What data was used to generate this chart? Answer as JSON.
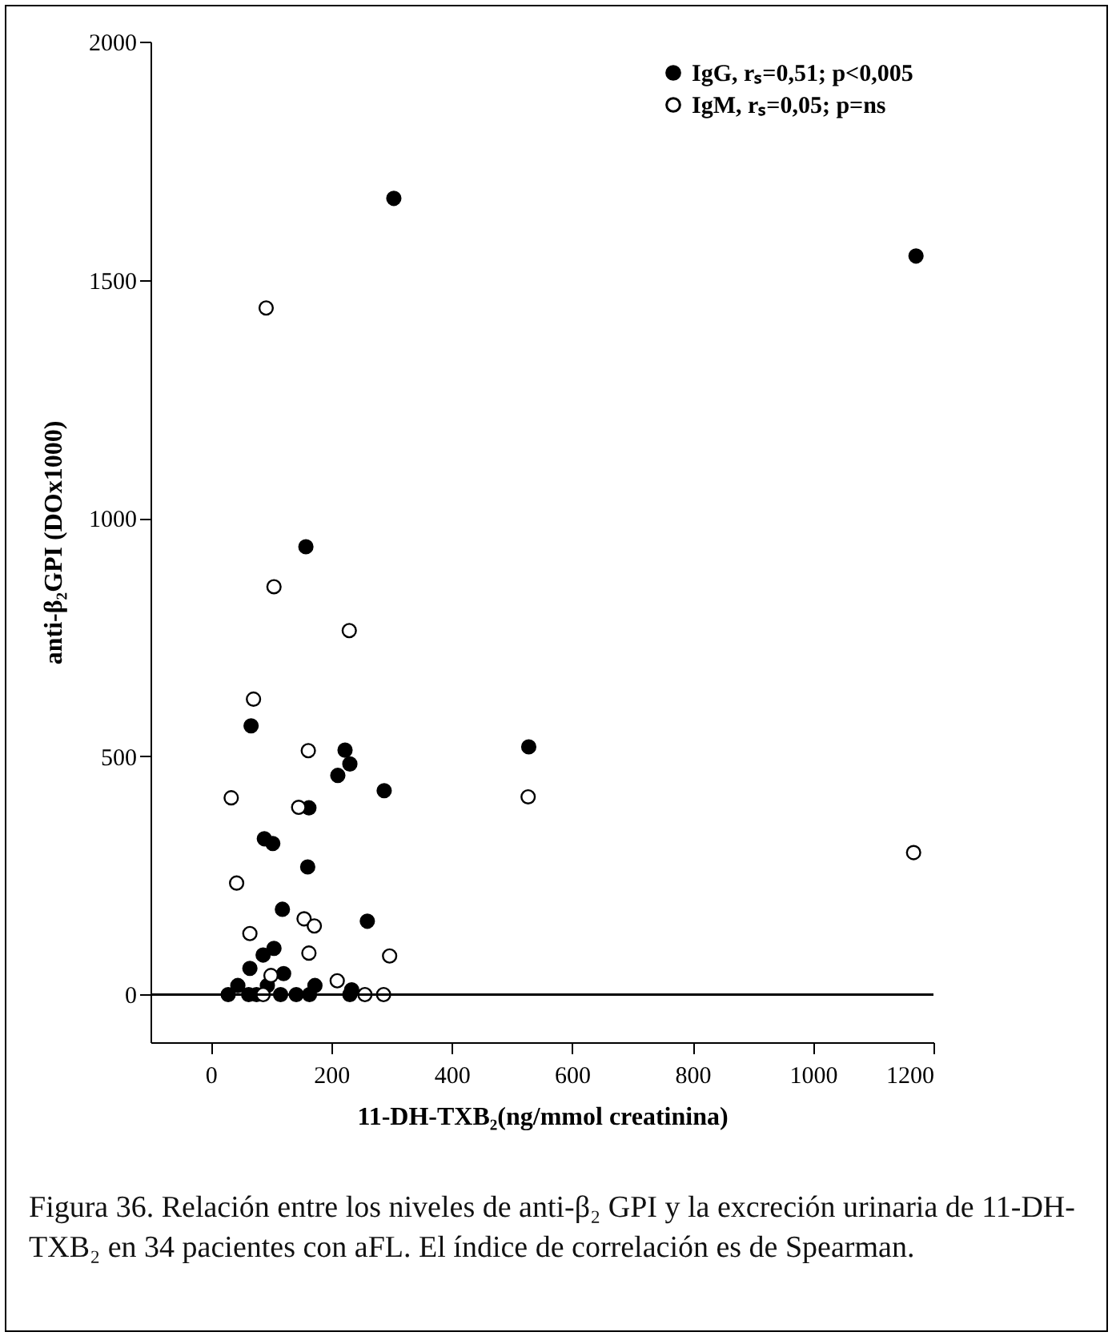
{
  "chart_data": {
    "type": "scatter",
    "xlabel": "11-DH-TXB₂(ng/mmol creatinina)",
    "ylabel": "anti-β₂GPI (DOx1000)",
    "xlim": [
      -100,
      1200
    ],
    "ylim": [
      -100,
      2000
    ],
    "xticks": [
      0,
      200,
      400,
      600,
      800,
      1000,
      1200
    ],
    "yticks": [
      0,
      500,
      1000,
      1500,
      2000
    ],
    "grid": false,
    "legend": "top right",
    "marker": "circle",
    "ref_lines": [
      {
        "axis": "y",
        "value": 0,
        "color": "#000000"
      }
    ],
    "series": [
      {
        "name": "IgG, rₛ=0,51; p<0,005",
        "color": "#000000",
        "x": [
          304,
          1171,
          158,
          528,
          67,
          223,
          231,
          211,
          288,
          163,
          89,
          103,
          161,
          119,
          260,
          87,
          105,
          65,
          121,
          29,
          45,
          63,
          76,
          94,
          116,
          142,
          164,
          173,
          231,
          234
        ],
        "values": [
          1671,
          1550,
          940,
          520,
          564,
          513,
          484,
          460,
          428,
          392,
          327,
          317,
          268,
          179,
          154,
          83,
          97,
          55,
          44,
          0,
          19,
          0,
          0,
          19,
          0,
          0,
          0,
          19,
          0,
          10
        ]
      },
      {
        "name": "IgM, rₛ=0,05; p=ns",
        "color": "#ffffff",
        "x": [
          92,
          105,
          230,
          71,
          162,
          34,
          146,
          527,
          1167,
          43,
          155,
          172,
          65,
          163,
          297,
          100,
          210,
          256,
          287,
          87
        ],
        "values": [
          1441,
          856,
          764,
          620,
          512,
          413,
          393,
          415,
          298,
          234,
          159,
          144,
          128,
          87,
          81,
          40,
          29,
          0,
          0,
          0
        ]
      }
    ],
    "annotations": [
      "Figura 36. Relación entre los niveles de anti-β₂ GPI y la excreción urinaria de 11-DH-TXB₂ en 34 pacientes con aFL. El índice de correlación es de Spearman."
    ]
  }
}
